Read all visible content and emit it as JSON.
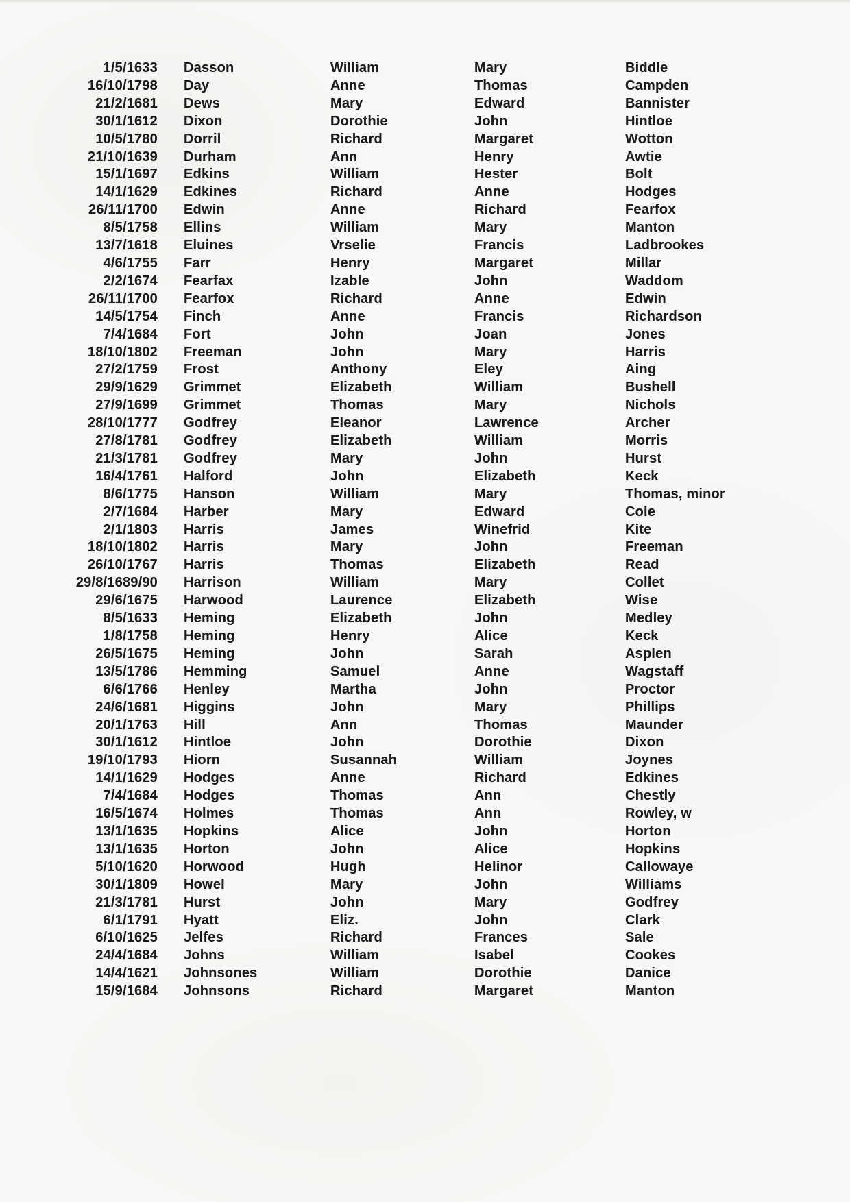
{
  "page": {
    "background_color": "#f7f7f5",
    "text_color": "#1b1b1b"
  },
  "records": [
    {
      "date": "1/5/1633",
      "surname": "Dasson",
      "first_name": "William",
      "spouse_first_name": "Mary",
      "spouse_surname": "Biddle"
    },
    {
      "date": "16/10/1798",
      "surname": "Day",
      "first_name": "Anne",
      "spouse_first_name": "Thomas",
      "spouse_surname": "Campden"
    },
    {
      "date": "21/2/1681",
      "surname": "Dews",
      "first_name": "Mary",
      "spouse_first_name": "Edward",
      "spouse_surname": "Bannister"
    },
    {
      "date": "30/1/1612",
      "surname": "Dixon",
      "first_name": "Dorothie",
      "spouse_first_name": "John",
      "spouse_surname": "Hintloe"
    },
    {
      "date": "10/5/1780",
      "surname": "Dorril",
      "first_name": "Richard",
      "spouse_first_name": "Margaret",
      "spouse_surname": "Wotton"
    },
    {
      "date": "21/10/1639",
      "surname": "Durham",
      "first_name": "Ann",
      "spouse_first_name": "Henry",
      "spouse_surname": "Awtie"
    },
    {
      "date": "15/1/1697",
      "surname": "Edkins",
      "first_name": "William",
      "spouse_first_name": "Hester",
      "spouse_surname": "Bolt"
    },
    {
      "date": "14/1/1629",
      "surname": "Edkines",
      "first_name": "Richard",
      "spouse_first_name": "Anne",
      "spouse_surname": "Hodges"
    },
    {
      "date": "26/11/1700",
      "surname": "Edwin",
      "first_name": "Anne",
      "spouse_first_name": "Richard",
      "spouse_surname": "Fearfox"
    },
    {
      "date": "8/5/1758",
      "surname": "Ellins",
      "first_name": "William",
      "spouse_first_name": "Mary",
      "spouse_surname": "Manton"
    },
    {
      "date": "13/7/1618",
      "surname": "Eluines",
      "first_name": "Vrselie",
      "spouse_first_name": "Francis",
      "spouse_surname": "Ladbrookes"
    },
    {
      "date": "4/6/1755",
      "surname": "Farr",
      "first_name": "Henry",
      "spouse_first_name": "Margaret",
      "spouse_surname": "Millar"
    },
    {
      "date": "2/2/1674",
      "surname": "Fearfax",
      "first_name": "Izable",
      "spouse_first_name": "John",
      "spouse_surname": "Waddom"
    },
    {
      "date": "26/11/1700",
      "surname": "Fearfox",
      "first_name": "Richard",
      "spouse_first_name": "Anne",
      "spouse_surname": "Edwin"
    },
    {
      "date": "14/5/1754",
      "surname": "Finch",
      "first_name": "Anne",
      "spouse_first_name": "Francis",
      "spouse_surname": "Richardson"
    },
    {
      "date": "7/4/1684",
      "surname": "Fort",
      "first_name": "John",
      "spouse_first_name": "Joan",
      "spouse_surname": "Jones"
    },
    {
      "date": "18/10/1802",
      "surname": "Freeman",
      "first_name": "John",
      "spouse_first_name": "Mary",
      "spouse_surname": "Harris"
    },
    {
      "date": "27/2/1759",
      "surname": "Frost",
      "first_name": "Anthony",
      "spouse_first_name": "Eley",
      "spouse_surname": "Aing"
    },
    {
      "date": "29/9/1629",
      "surname": "Grimmet",
      "first_name": "Elizabeth",
      "spouse_first_name": "William",
      "spouse_surname": "Bushell"
    },
    {
      "date": "27/9/1699",
      "surname": "Grimmet",
      "first_name": "Thomas",
      "spouse_first_name": "Mary",
      "spouse_surname": "Nichols"
    },
    {
      "date": "28/10/1777",
      "surname": "Godfrey",
      "first_name": "Eleanor",
      "spouse_first_name": "Lawrence",
      "spouse_surname": "Archer"
    },
    {
      "date": "27/8/1781",
      "surname": "Godfrey",
      "first_name": "Elizabeth",
      "spouse_first_name": "William",
      "spouse_surname": "Morris"
    },
    {
      "date": "21/3/1781",
      "surname": "Godfrey",
      "first_name": "Mary",
      "spouse_first_name": "John",
      "spouse_surname": "Hurst"
    },
    {
      "date": "16/4/1761",
      "surname": "Halford",
      "first_name": "John",
      "spouse_first_name": "Elizabeth",
      "spouse_surname": "Keck"
    },
    {
      "date": "8/6/1775",
      "surname": "Hanson",
      "first_name": "William",
      "spouse_first_name": "Mary",
      "spouse_surname": "Thomas, minor"
    },
    {
      "date": "2/7/1684",
      "surname": "Harber",
      "first_name": "Mary",
      "spouse_first_name": "Edward",
      "spouse_surname": "Cole"
    },
    {
      "date": "2/1/1803",
      "surname": "Harris",
      "first_name": "James",
      "spouse_first_name": "Winefrid",
      "spouse_surname": "Kite"
    },
    {
      "date": "18/10/1802",
      "surname": "Harris",
      "first_name": "Mary",
      "spouse_first_name": "John",
      "spouse_surname": "Freeman"
    },
    {
      "date": "26/10/1767",
      "surname": "Harris",
      "first_name": "Thomas",
      "spouse_first_name": "Elizabeth",
      "spouse_surname": "Read"
    },
    {
      "date": "29/8/1689/90",
      "surname": "Harrison",
      "first_name": "William",
      "spouse_first_name": "Mary",
      "spouse_surname": "Collet"
    },
    {
      "date": "29/6/1675",
      "surname": "Harwood",
      "first_name": "Laurence",
      "spouse_first_name": "Elizabeth",
      "spouse_surname": "Wise"
    },
    {
      "date": "8/5/1633",
      "surname": "Heming",
      "first_name": "Elizabeth",
      "spouse_first_name": "John",
      "spouse_surname": "Medley"
    },
    {
      "date": "1/8/1758",
      "surname": "Heming",
      "first_name": "Henry",
      "spouse_first_name": "Alice",
      "spouse_surname": "Keck"
    },
    {
      "date": "26/5/1675",
      "surname": "Heming",
      "first_name": "John",
      "spouse_first_name": "Sarah",
      "spouse_surname": "Asplen"
    },
    {
      "date": "13/5/1786",
      "surname": "Hemming",
      "first_name": "Samuel",
      "spouse_first_name": "Anne",
      "spouse_surname": "Wagstaff"
    },
    {
      "date": "6/6/1766",
      "surname": "Henley",
      "first_name": "Martha",
      "spouse_first_name": "John",
      "spouse_surname": "Proctor"
    },
    {
      "date": "24/6/1681",
      "surname": "Higgins",
      "first_name": "John",
      "spouse_first_name": "Mary",
      "spouse_surname": "Phillips"
    },
    {
      "date": "20/1/1763",
      "surname": "Hill",
      "first_name": "Ann",
      "spouse_first_name": "Thomas",
      "spouse_surname": "Maunder"
    },
    {
      "date": "30/1/1612",
      "surname": "Hintloe",
      "first_name": "John",
      "spouse_first_name": "Dorothie",
      "spouse_surname": "Dixon"
    },
    {
      "date": "19/10/1793",
      "surname": "Hiorn",
      "first_name": "Susannah",
      "spouse_first_name": "William",
      "spouse_surname": "Joynes"
    },
    {
      "date": "14/1/1629",
      "surname": "Hodges",
      "first_name": "Anne",
      "spouse_first_name": "Richard",
      "spouse_surname": "Edkines"
    },
    {
      "date": "7/4/1684",
      "surname": "Hodges",
      "first_name": "Thomas",
      "spouse_first_name": "Ann",
      "spouse_surname": "Chestly"
    },
    {
      "date": "16/5/1674",
      "surname": "Holmes",
      "first_name": "Thomas",
      "spouse_first_name": "Ann",
      "spouse_surname": "Rowley, w"
    },
    {
      "date": "13/1/1635",
      "surname": "Hopkins",
      "first_name": "Alice",
      "spouse_first_name": "John",
      "spouse_surname": "Horton"
    },
    {
      "date": "13/1/1635",
      "surname": "Horton",
      "first_name": "John",
      "spouse_first_name": "Alice",
      "spouse_surname": "Hopkins"
    },
    {
      "date": "5/10/1620",
      "surname": "Horwood",
      "first_name": "Hugh",
      "spouse_first_name": "Helinor",
      "spouse_surname": "Callowaye"
    },
    {
      "date": "30/1/1809",
      "surname": "Howel",
      "first_name": "Mary",
      "spouse_first_name": "John",
      "spouse_surname": "Williams"
    },
    {
      "date": "21/3/1781",
      "surname": "Hurst",
      "first_name": "John",
      "spouse_first_name": "Mary",
      "spouse_surname": "Godfrey"
    },
    {
      "date": "6/1/1791",
      "surname": "Hyatt",
      "first_name": "Eliz.",
      "spouse_first_name": "John",
      "spouse_surname": "Clark"
    },
    {
      "date": "6/10/1625",
      "surname": "Jelfes",
      "first_name": "Richard",
      "spouse_first_name": "Frances",
      "spouse_surname": "Sale"
    },
    {
      "date": "24/4/1684",
      "surname": "Johns",
      "first_name": "William",
      "spouse_first_name": "Isabel",
      "spouse_surname": "Cookes"
    },
    {
      "date": "14/4/1621",
      "surname": "Johnsones",
      "first_name": "William",
      "spouse_first_name": "Dorothie",
      "spouse_surname": "Danice"
    },
    {
      "date": "15/9/1684",
      "surname": "Johnsons",
      "first_name": "Richard",
      "spouse_first_name": "Margaret",
      "spouse_surname": "Manton"
    }
  ]
}
